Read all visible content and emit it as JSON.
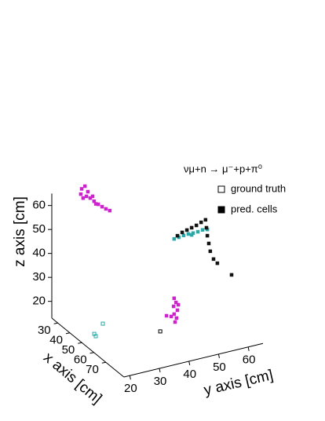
{
  "chart_data": {
    "type": "scatter3d",
    "title": "νμ+n → μ⁻+p+π⁰",
    "xlabel": "x axis [cm]",
    "ylabel": "y axis [cm]",
    "zlabel": "z axis [cm]",
    "xlim": [
      25,
      85
    ],
    "ylim": [
      18,
      65
    ],
    "zlim": [
      13,
      65
    ],
    "xticks": [
      30,
      40,
      50,
      60,
      70
    ],
    "yticks": [
      20,
      30,
      40,
      50,
      60
    ],
    "zticks": [
      20,
      30,
      40,
      50,
      60
    ],
    "legend": "top-right",
    "series": [
      {
        "name": "ground truth",
        "marker": "open",
        "color": "#000000",
        "clusters": [
          {
            "color": "#2aa8a8",
            "x": [
              50,
              50,
              50
            ],
            "y": [
              22.2,
              22.7,
              25.1
            ],
            "z": [
              15.4,
              14.3,
              18.8
            ]
          },
          {
            "color": "#000000",
            "x": [
              50
            ],
            "y": [
              44.5
            ],
            "z": [
              9.8
            ]
          }
        ]
      },
      {
        "name": "pred. cells",
        "marker": "filled",
        "color": "#000000",
        "clusters": [
          {
            "color": "#cc22cc",
            "x": [
              40,
              40,
              40,
              40,
              40,
              40,
              40,
              40,
              40,
              40,
              40,
              40,
              40,
              40
            ],
            "y": [
              22.0,
              23.1,
              21.7,
              23.6,
              24.9,
              26.2,
              27.6,
              28.9,
              30.2,
              31.5,
              24.1,
              25.7,
              22.5,
              26.8
            ],
            "z": [
              71.9,
              72.7,
              69.8,
              68.3,
              67.2,
              65.5,
              63.8,
              62.4,
              61.1,
              60.0,
              70.1,
              67.7,
              67.9,
              64.2
            ]
          },
          {
            "color": "#cc22cc",
            "x": [
              50,
              50,
              50,
              50,
              50,
              50,
              50,
              50,
              50,
              50
            ],
            "y": [
              49.2,
              49.8,
              49.0,
              50.3,
              49.2,
              50.0,
              49.5,
              46.6,
              48.2,
              50.6
            ],
            "z": [
              22.2,
              20.3,
              18.9,
              16.9,
              15.6,
              13.7,
              12.2,
              15.7,
              14.9,
              19.1
            ]
          },
          {
            "color": "#2aa8a8",
            "x": [
              50,
              50,
              50,
              50,
              50,
              50,
              50,
              50,
              50
            ],
            "y": [
              49.2,
              50.8,
              52.4,
              54.0,
              55.6,
              57.2,
              58.8,
              60.4,
              55.1
            ],
            "z": [
              47.0,
              47.2,
              47.5,
              47.6,
              47.5,
              47.6,
              47.9,
              47.6,
              46.9
            ]
          },
          {
            "color": "#111111",
            "x": [
              50,
              50,
              50,
              50,
              50,
              50,
              50,
              50,
              50,
              50,
              50,
              50,
              50,
              50
            ],
            "y": [
              50.3,
              51.9,
              53.5,
              55.1,
              56.7,
              58.3,
              59.8,
              60.1,
              60.4,
              60.9,
              61.4,
              62.5,
              63.8,
              68.6
            ],
            "z": [
              48.0,
              48.9,
              49.4,
              49.9,
              50.4,
              51.2,
              51.8,
              48.4,
              45.0,
              41.6,
              38.2,
              34.6,
              32.5,
              26.2
            ]
          }
        ]
      }
    ]
  }
}
